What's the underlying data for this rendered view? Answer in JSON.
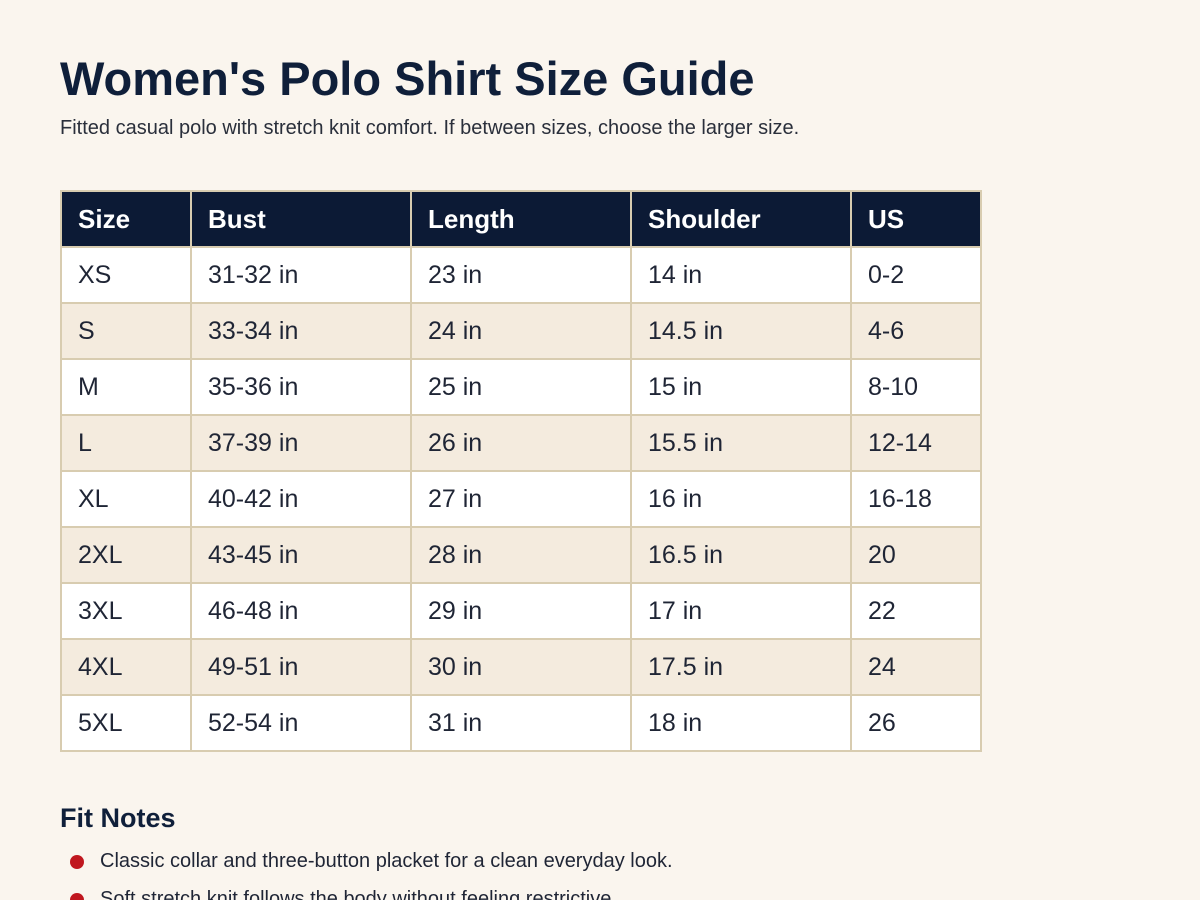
{
  "header": {
    "title": "Women's Polo Shirt Size Guide",
    "subtitle": "Fitted casual polo with stretch knit comfort. If between sizes, choose the larger size."
  },
  "table": {
    "columns": [
      "Size",
      "Bust",
      "Length",
      "Shoulder",
      "US"
    ],
    "rows": [
      [
        "XS",
        "31-32 in",
        "23 in",
        "14 in",
        "0-2"
      ],
      [
        "S",
        "33-34 in",
        "24 in",
        "14.5 in",
        "4-6"
      ],
      [
        "M",
        "35-36 in",
        "25 in",
        "15 in",
        "8-10"
      ],
      [
        "L",
        "37-39 in",
        "26 in",
        "15.5 in",
        "12-14"
      ],
      [
        "XL",
        "40-42 in",
        "27 in",
        "16 in",
        "16-18"
      ],
      [
        "2XL",
        "43-45 in",
        "28 in",
        "16.5 in",
        "20"
      ],
      [
        "3XL",
        "46-48 in",
        "29 in",
        "17 in",
        "22"
      ],
      [
        "4XL",
        "49-51 in",
        "30 in",
        "17.5 in",
        "24"
      ],
      [
        "5XL",
        "52-54 in",
        "31 in",
        "18 in",
        "26"
      ]
    ]
  },
  "notes": {
    "title": "Fit Notes",
    "items": [
      "Classic collar and three-button placket for a clean everyday look.",
      "Soft stretch knit follows the body without feeling restrictive."
    ]
  }
}
